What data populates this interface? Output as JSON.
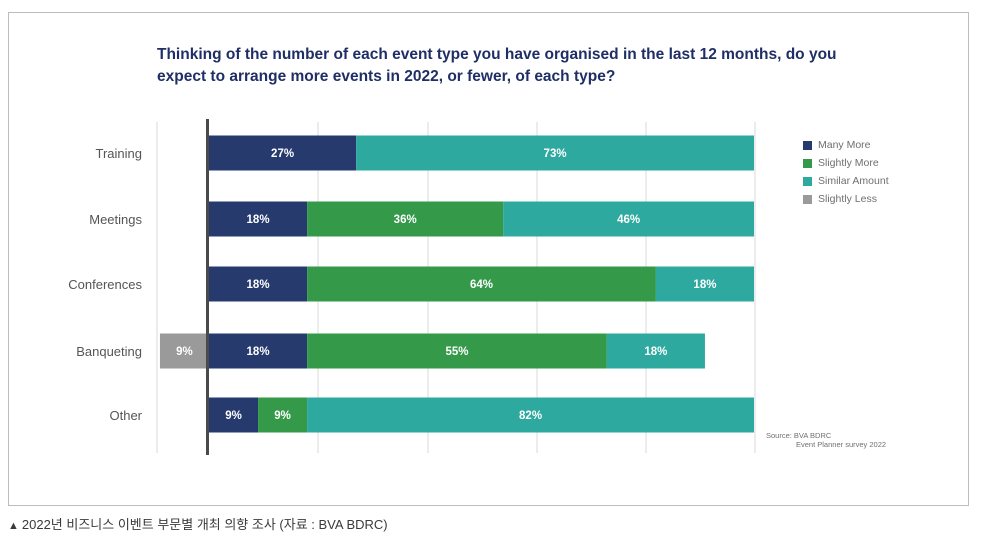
{
  "chart_data": {
    "type": "bar",
    "orientation": "horizontal",
    "stacked": true,
    "title": "Thinking of the number of each event type you have organised in the last 12 months, do you expect to arrange more events in 2022, or fewer, of each type?",
    "categories": [
      "Training",
      "Meetings",
      "Conferences",
      "Banqueting",
      "Other"
    ],
    "series": [
      {
        "name": "Many More",
        "color": "#263a6e",
        "values": [
          27,
          18,
          18,
          18,
          9
        ]
      },
      {
        "name": "Slightly More",
        "color": "#35994a",
        "values": [
          0,
          36,
          64,
          55,
          9
        ]
      },
      {
        "name": "Similar Amount",
        "color": "#2ea9a0",
        "values": [
          73,
          46,
          18,
          18,
          82
        ]
      },
      {
        "name": "Slightly Less",
        "color": "#9a9a9a",
        "values": [
          0,
          0,
          0,
          9,
          0
        ]
      }
    ],
    "legend_position": "right",
    "grid": true
  },
  "source": {
    "line1": "Source: BVA BDRC",
    "line2": "Event Planner survey 2022"
  },
  "caption": {
    "marker": "▲",
    "text": "2022년 비즈니스 이벤트 부문별 개최 의향 조사 (자료 : BVA BDRC)"
  }
}
